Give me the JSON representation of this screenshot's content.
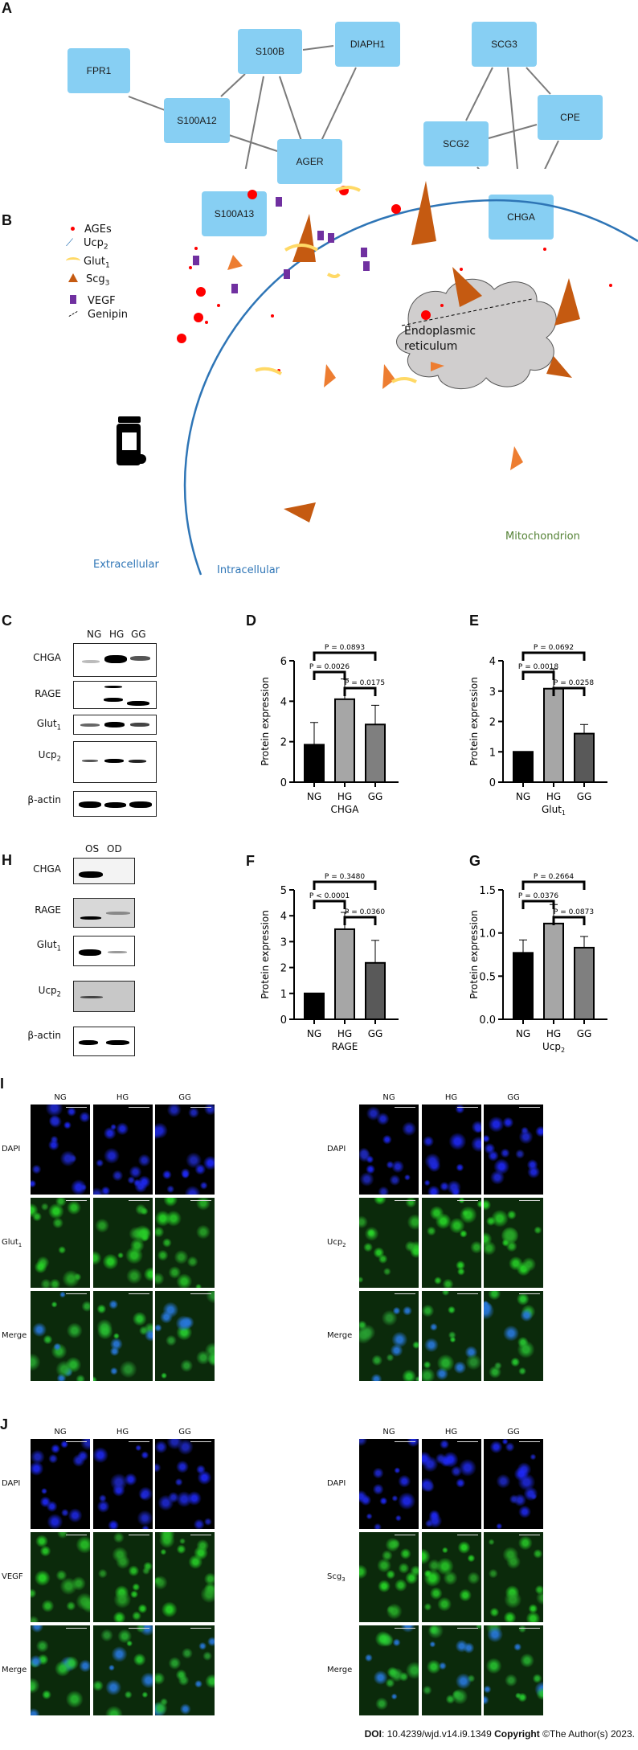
{
  "panels": {
    "A": {
      "label": "A",
      "networks": [
        {
          "nodes": [
            "FPR1",
            "S100A12",
            "S100B",
            "DIAPH1",
            "AGER",
            "S100A13"
          ],
          "edges": [
            [
              "FPR1",
              "S100A12"
            ],
            [
              "S100A12",
              "S100B"
            ],
            [
              "S100A12",
              "AGER"
            ],
            [
              "S100B",
              "DIAPH1"
            ],
            [
              "S100B",
              "AGER"
            ],
            [
              "S100B",
              "S100A13"
            ],
            [
              "DIAPH1",
              "AGER"
            ],
            [
              "AGER",
              "S100A13"
            ]
          ]
        },
        {
          "nodes": [
            "SCG3",
            "CPE",
            "SCG2",
            "CHGA"
          ],
          "edges": [
            [
              "SCG3",
              "SCG2"
            ],
            [
              "SCG3",
              "CPE"
            ],
            [
              "SCG3",
              "CHGA"
            ],
            [
              "SCG2",
              "CPE"
            ],
            [
              "SCG2",
              "CHGA"
            ],
            [
              "CPE",
              "CHGA"
            ]
          ]
        }
      ],
      "node_color": "#87cff3"
    },
    "B": {
      "label": "B",
      "legend": [
        {
          "icon": "red-dot-icon",
          "label": "AGEs",
          "sub": ""
        },
        {
          "icon": "ucp-channel-icon",
          "label": "Ucp",
          "sub": "2"
        },
        {
          "icon": "yellow-arc-icon",
          "label": "Glut",
          "sub": "1"
        },
        {
          "icon": "orange-triangle-icon",
          "label": "Scg",
          "sub": "3"
        },
        {
          "icon": "purple-rect-icon",
          "label": "VEGF",
          "sub": ""
        },
        {
          "icon": "dashed-line-icon",
          "label": "Genipin",
          "sub": ""
        }
      ],
      "organelles": {
        "er": "Endoplasmic reticulum",
        "er_line1": "Endoplasmic",
        "er_line2": "reticulum",
        "mito": "Mitochondrion"
      },
      "regions": {
        "extra": "Extracellular",
        "intra": "Intracellular"
      },
      "colors": {
        "membrane": "#2e75b6",
        "ages": "#ff0000",
        "glut": "#ffd966",
        "scg": "#c55a11",
        "scg_light": "#ed7d31",
        "vegf": "#7030a0",
        "er": "#d0cece",
        "mito_outer": "#e2efd9",
        "mito_inner": "#deebf7",
        "mito_text": "#548235",
        "region_text": "#2e75b6"
      }
    },
    "C": {
      "label": "C",
      "lanes": [
        "NG",
        "HG",
        "GG"
      ],
      "rows": [
        {
          "name": "CHGA",
          "sub": ""
        },
        {
          "name": "RAGE",
          "sub": ""
        },
        {
          "name": "Glut",
          "sub": "1"
        },
        {
          "name": "Ucp",
          "sub": "2"
        },
        {
          "name": "β-actin",
          "sub": ""
        }
      ]
    },
    "H": {
      "label": "H",
      "lanes": [
        "OS",
        "OD"
      ],
      "rows": [
        {
          "name": "CHGA",
          "sub": ""
        },
        {
          "name": "RAGE",
          "sub": ""
        },
        {
          "name": "Glut",
          "sub": "1"
        },
        {
          "name": "Ucp",
          "sub": "2"
        },
        {
          "name": "β-actin",
          "sub": ""
        }
      ]
    },
    "I": {
      "label": "I",
      "left": {
        "cols": [
          "NG",
          "HG",
          "GG"
        ],
        "rows": [
          {
            "name": "DAPI",
            "sub": ""
          },
          {
            "name": "Glut",
            "sub": "1"
          },
          {
            "name": "Merge",
            "sub": ""
          }
        ]
      },
      "right": {
        "cols": [
          "NG",
          "HG",
          "GG"
        ],
        "rows": [
          {
            "name": "DAPI",
            "sub": ""
          },
          {
            "name": "Ucp",
            "sub": "2"
          },
          {
            "name": "Merge",
            "sub": ""
          }
        ]
      }
    },
    "J": {
      "label": "J",
      "left": {
        "cols": [
          "NG",
          "HG",
          "GG"
        ],
        "rows": [
          {
            "name": "DAPI",
            "sub": ""
          },
          {
            "name": "VEGF",
            "sub": ""
          },
          {
            "name": "Merge",
            "sub": ""
          }
        ]
      },
      "right": {
        "cols": [
          "NG",
          "HG",
          "GG"
        ],
        "rows": [
          {
            "name": "DAPI",
            "sub": ""
          },
          {
            "name": "Scg",
            "sub": "3"
          },
          {
            "name": "Merge",
            "sub": ""
          }
        ]
      }
    }
  },
  "chart_data": [
    {
      "panel": "D",
      "type": "bar",
      "title": "",
      "xlabel": "CHGA",
      "xlabel_sub": "",
      "ylabel": "Protein expression",
      "categories": [
        "NG",
        "HG",
        "GG"
      ],
      "values": [
        1.85,
        4.1,
        2.85
      ],
      "errors": [
        1.1,
        1.0,
        0.95
      ],
      "ylim": [
        0,
        6
      ],
      "yticks": [
        "0",
        "2",
        "4",
        "6"
      ],
      "ytick_vals": [
        0,
        2,
        4,
        6
      ],
      "bar_colors": [
        "#000000",
        "#a6a6a6",
        "#7f7f7f"
      ],
      "comparisons": [
        {
          "a": 0,
          "b": 1,
          "p": "P = 0.0026"
        },
        {
          "a": 1,
          "b": 2,
          "p": "P = 0.0175"
        },
        {
          "a": 0,
          "b": 2,
          "p": "P = 0.0893"
        }
      ]
    },
    {
      "panel": "E",
      "type": "bar",
      "title": "",
      "xlabel": "Glut",
      "xlabel_sub": "1",
      "ylabel": "Protein expression",
      "categories": [
        "NG",
        "HG",
        "GG"
      ],
      "values": [
        1.0,
        3.08,
        1.6
      ],
      "errors": [
        0,
        0.65,
        0.3
      ],
      "ylim": [
        0,
        4
      ],
      "yticks": [
        "0",
        "1",
        "2",
        "3",
        "4"
      ],
      "ytick_vals": [
        0,
        1,
        2,
        3,
        4
      ],
      "bar_colors": [
        "#000000",
        "#a6a6a6",
        "#595959"
      ],
      "comparisons": [
        {
          "a": 0,
          "b": 1,
          "p": "P = 0.0018"
        },
        {
          "a": 1,
          "b": 2,
          "p": "P = 0.0258"
        },
        {
          "a": 0,
          "b": 2,
          "p": "P = 0.0692"
        }
      ]
    },
    {
      "panel": "F",
      "type": "bar",
      "title": "",
      "xlabel": "RAGE",
      "xlabel_sub": "",
      "ylabel": "Protein expression",
      "categories": [
        "NG",
        "HG",
        "GG"
      ],
      "values": [
        1.0,
        3.48,
        2.18
      ],
      "errors": [
        0,
        0.65,
        0.87
      ],
      "ylim": [
        0,
        5
      ],
      "yticks": [
        "0",
        "1",
        "2",
        "3",
        "4",
        "5"
      ],
      "ytick_vals": [
        0,
        1,
        2,
        3,
        4,
        5
      ],
      "bar_colors": [
        "#000000",
        "#a6a6a6",
        "#595959"
      ],
      "comparisons": [
        {
          "a": 0,
          "b": 1,
          "p": "P < 0.0001"
        },
        {
          "a": 1,
          "b": 2,
          "p": "P = 0.0360"
        },
        {
          "a": 0,
          "b": 2,
          "p": "P = 0.3480"
        }
      ]
    },
    {
      "panel": "G",
      "type": "bar",
      "title": "",
      "xlabel": "Ucp",
      "xlabel_sub": "2",
      "ylabel": "Protein expression",
      "categories": [
        "NG",
        "HG",
        "GG"
      ],
      "values": [
        0.77,
        1.11,
        0.83
      ],
      "errors": [
        0.15,
        0.22,
        0.13
      ],
      "ylim": [
        0,
        1.5
      ],
      "yticks": [
        "0.0",
        "0.5",
        "1.0",
        "1.5"
      ],
      "ytick_vals": [
        0,
        0.5,
        1.0,
        1.5
      ],
      "bar_colors": [
        "#000000",
        "#a6a6a6",
        "#7f7f7f"
      ],
      "comparisons": [
        {
          "a": 0,
          "b": 1,
          "p": "P = 0.0376"
        },
        {
          "a": 1,
          "b": 2,
          "p": "P = 0.0873"
        },
        {
          "a": 0,
          "b": 2,
          "p": "P = 0.2664"
        }
      ]
    }
  ],
  "footer": {
    "doi_label": "DOI",
    "doi_value": ": 10.4239/wjd.v14.i9.1349 ",
    "copyright_label": "Copyright",
    "copyright_value": " ©The Author(s) 2023."
  }
}
